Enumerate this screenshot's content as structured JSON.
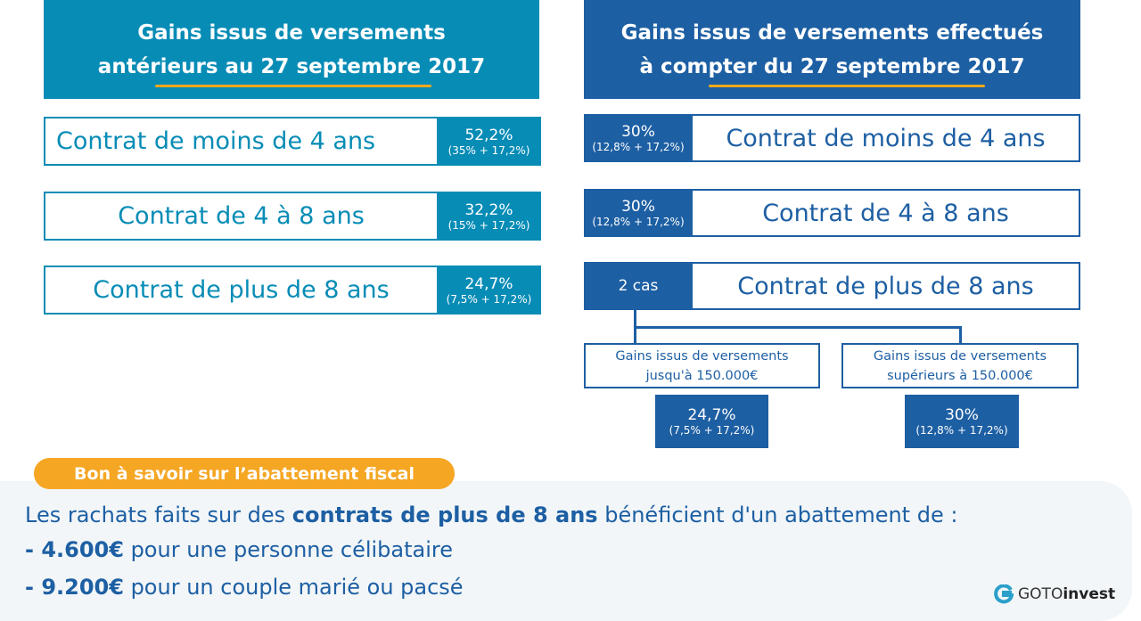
{
  "colors": {
    "left": "#078cb6",
    "right": "#1d5fa3",
    "accent": "#f5a623",
    "panel": "#f2f6f8"
  },
  "left": {
    "title_line1": "Gains issus de versements",
    "title_line2": "antérieurs au 27 septembre 2017",
    "rows": [
      {
        "label": "Contrat de moins de 4 ans",
        "rate": "52,2%",
        "detail": "(35% + 17,2%)"
      },
      {
        "label": "Contrat de 4 à 8 ans",
        "rate": "32,2%",
        "detail": "(15% + 17,2%)"
      },
      {
        "label": "Contrat de plus de 8 ans",
        "rate": "24,7%",
        "detail": "(7,5% + 17,2%)"
      }
    ]
  },
  "right": {
    "title_line1": "Gains issus de versements effectués",
    "title_line2": "à compter du 27 septembre 2017",
    "rows": [
      {
        "label": "Contrat de moins de 4 ans",
        "rate": "30%",
        "detail": "(12,8% + 17,2%)"
      },
      {
        "label": "Contrat de 4 à 8 ans",
        "rate": "30%",
        "detail": "(12,8% + 17,2%)"
      },
      {
        "label": "Contrat de plus de 8 ans",
        "rate": "2 cas"
      }
    ],
    "cases": [
      {
        "line1": "Gains issus de versements",
        "line2": "jusqu'à 150.000€",
        "rate": "24,7%",
        "detail": "(7,5% + 17,2%)"
      },
      {
        "line1": "Gains issus de versements",
        "line2": "supérieurs à 150.000€",
        "rate": "30%",
        "detail": "(12,8% + 17,2%)"
      }
    ]
  },
  "note": {
    "badge": "Bon à savoir sur l’abattement fiscal",
    "line1_a": "Les rachats faits sur des ",
    "line1_b": "contrats de plus de 8 ans",
    "line1_c": " bénéficient d'un abattement de :",
    "line2_a": "- 4.600€",
    "line2_b": " pour une personne célibataire",
    "line3_a": "- 9.200€",
    "line3_b": " pour un couple marié ou pacsé"
  },
  "logo": {
    "text_a": "GOTO",
    "text_b": "invest"
  }
}
